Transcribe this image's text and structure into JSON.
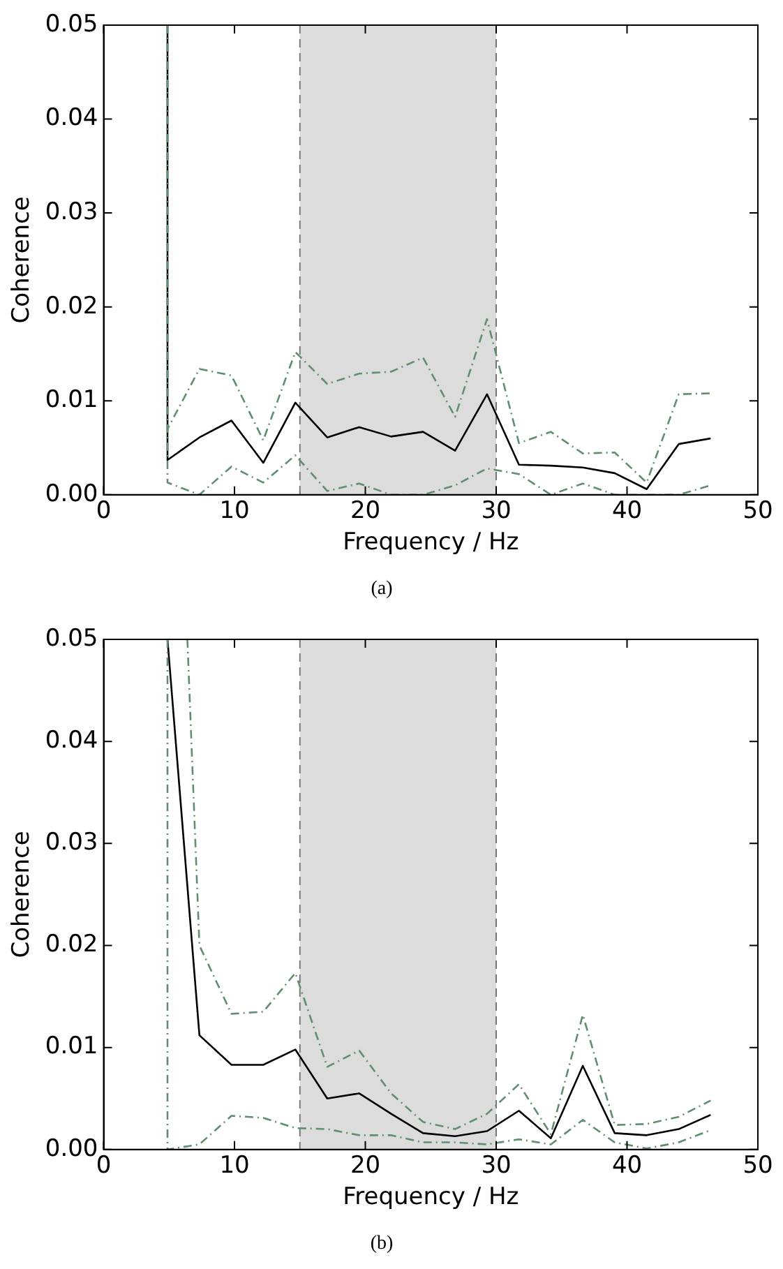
{
  "chart_data": [
    {
      "type": "line",
      "title": "(a)",
      "ref_lines": [
        {
          "axis": "x",
          "value": 15,
          "color": "#777777",
          "line_style": "dashed"
        },
        {
          "axis": "x",
          "value": 30,
          "color": "#777777",
          "line_style": "dashed"
        }
      ],
      "xlabel": "Frequency / Hz",
      "ylabel": "Coherence",
      "xlim": [
        0,
        50
      ],
      "ylim": [
        0,
        0.05
      ],
      "xticks": [
        0,
        10,
        20,
        30,
        40,
        50
      ],
      "yticks": [
        {
          "value": 0,
          "label": "0.00"
        },
        {
          "value": 0.01,
          "label": "0.01"
        },
        {
          "value": 0.02,
          "label": "0.02"
        },
        {
          "value": 0.03,
          "label": "0.03"
        },
        {
          "value": 0.04,
          "label": "0.04"
        },
        {
          "value": 0.05,
          "label": "0.05"
        }
      ],
      "grid": false,
      "legend": false,
      "marker": "none",
      "bands": [
        {
          "axis": "x",
          "from": 15,
          "to": 30,
          "color": "#dcdcdc"
        }
      ],
      "series": [
        {
          "color": "#5f8f6f",
          "line_style": "dashed",
          "x": [
            4.88,
            4.88,
            7.32,
            9.77,
            12.2,
            14.65,
            17.09,
            19.53,
            21.97,
            24.41,
            26.86,
            29.3,
            31.74,
            34.18,
            36.62,
            39.06,
            41.5,
            43.95,
            46.39
          ],
          "values": [
            0.05,
            0.007,
            0.0134,
            0.0127,
            0.0058,
            0.0152,
            0.0118,
            0.0129,
            0.0131,
            0.0146,
            0.0083,
            0.0187,
            0.0055,
            0.0067,
            0.0044,
            0.0045,
            0.0013,
            0.0107,
            0.0108
          ]
        },
        {
          "color": "#5f8f6f",
          "line_style": "dashed",
          "x": [
            4.88,
            4.88,
            7.32,
            9.77,
            12.2,
            14.65,
            17.09,
            19.53,
            21.97,
            24.41,
            26.86,
            29.3,
            31.74,
            34.18,
            36.62,
            39.06,
            41.5,
            43.95,
            46.39
          ],
          "values": [
            0.05,
            0.0013,
            0,
            0.003,
            0.0013,
            0.0042,
            0.0004,
            0.0012,
            0,
            0,
            0.001,
            0.0028,
            0.0022,
            0,
            0.0012,
            0,
            0,
            0,
            0.001
          ]
        },
        {
          "color": "#000000",
          "line_style": "solid",
          "x": [
            4.88,
            4.88,
            7.32,
            9.77,
            12.2,
            14.65,
            17.09,
            19.53,
            21.97,
            24.41,
            26.86,
            29.3,
            31.74,
            34.18,
            36.62,
            39.06,
            41.5,
            43.95,
            46.39
          ],
          "values": [
            0.05,
            0.0037,
            0.0061,
            0.0079,
            0.0034,
            0.0098,
            0.0061,
            0.0072,
            0.0062,
            0.0067,
            0.0047,
            0.0107,
            0.0032,
            0.0031,
            0.0029,
            0.0023,
            0.0006,
            0.0054,
            0.006
          ]
        }
      ]
    },
    {
      "type": "line",
      "title": "(b)",
      "ref_lines": [
        {
          "axis": "x",
          "value": 15,
          "color": "#777777",
          "line_style": "dashed"
        },
        {
          "axis": "x",
          "value": 30,
          "color": "#777777",
          "line_style": "dashed"
        }
      ],
      "xlabel": "Frequency / Hz",
      "ylabel": "Coherence",
      "xlim": [
        0,
        50
      ],
      "ylim": [
        0,
        0.05
      ],
      "xticks": [
        0,
        10,
        20,
        30,
        40,
        50
      ],
      "yticks": [
        {
          "value": 0,
          "label": "0.00"
        },
        {
          "value": 0.01,
          "label": "0.01"
        },
        {
          "value": 0.02,
          "label": "0.02"
        },
        {
          "value": 0.03,
          "label": "0.03"
        },
        {
          "value": 0.04,
          "label": "0.04"
        },
        {
          "value": 0.05,
          "label": "0.05"
        }
      ],
      "grid": false,
      "legend": false,
      "marker": "none",
      "bands": [
        {
          "axis": "x",
          "from": 15,
          "to": 30,
          "color": "#dcdcdc"
        }
      ],
      "series": [
        {
          "color": "#5f8f6f",
          "line_style": "dashed",
          "x": [
            6.4,
            7.32,
            9.77,
            12.2,
            14.65,
            17.09,
            19.53,
            21.97,
            24.41,
            26.86,
            29.3,
            31.74,
            34.18,
            36.62,
            39.06,
            41.5,
            43.95,
            46.39
          ],
          "values": [
            0.05,
            0.02,
            0.0133,
            0.0135,
            0.0173,
            0.0081,
            0.0097,
            0.0055,
            0.0027,
            0.002,
            0.0035,
            0.0064,
            0.0015,
            0.0132,
            0.0024,
            0.0025,
            0.0032,
            0.0048
          ]
        },
        {
          "color": "#5f8f6f",
          "line_style": "dashed",
          "x": [
            4.88,
            4.88,
            7.32,
            9.77,
            12.2,
            14.65,
            17.09,
            19.53,
            21.97,
            24.41,
            26.86,
            29.3,
            31.74,
            34.18,
            36.62,
            39.06,
            41.5,
            43.95,
            46.39
          ],
          "values": [
            0.05,
            0,
            0.0005,
            0.0033,
            0.0031,
            0.0021,
            0.002,
            0.0014,
            0.0014,
            0.0007,
            0.0007,
            0.0005,
            0.001,
            0.0005,
            0.0029,
            0.0007,
            0.0001,
            0.0007,
            0.0019
          ]
        },
        {
          "color": "#000000",
          "line_style": "solid",
          "x": [
            4.88,
            7.32,
            9.77,
            12.2,
            14.65,
            17.09,
            19.53,
            21.97,
            24.41,
            26.86,
            29.3,
            31.74,
            34.18,
            36.62,
            39.06,
            41.5,
            43.95,
            46.39
          ],
          "values": [
            0.05,
            0.0112,
            0.0083,
            0.0083,
            0.0098,
            0.005,
            0.0055,
            0.0035,
            0.0016,
            0.0013,
            0.0018,
            0.0038,
            0.0011,
            0.0082,
            0.0016,
            0.0014,
            0.002,
            0.0034
          ]
        }
      ]
    }
  ]
}
